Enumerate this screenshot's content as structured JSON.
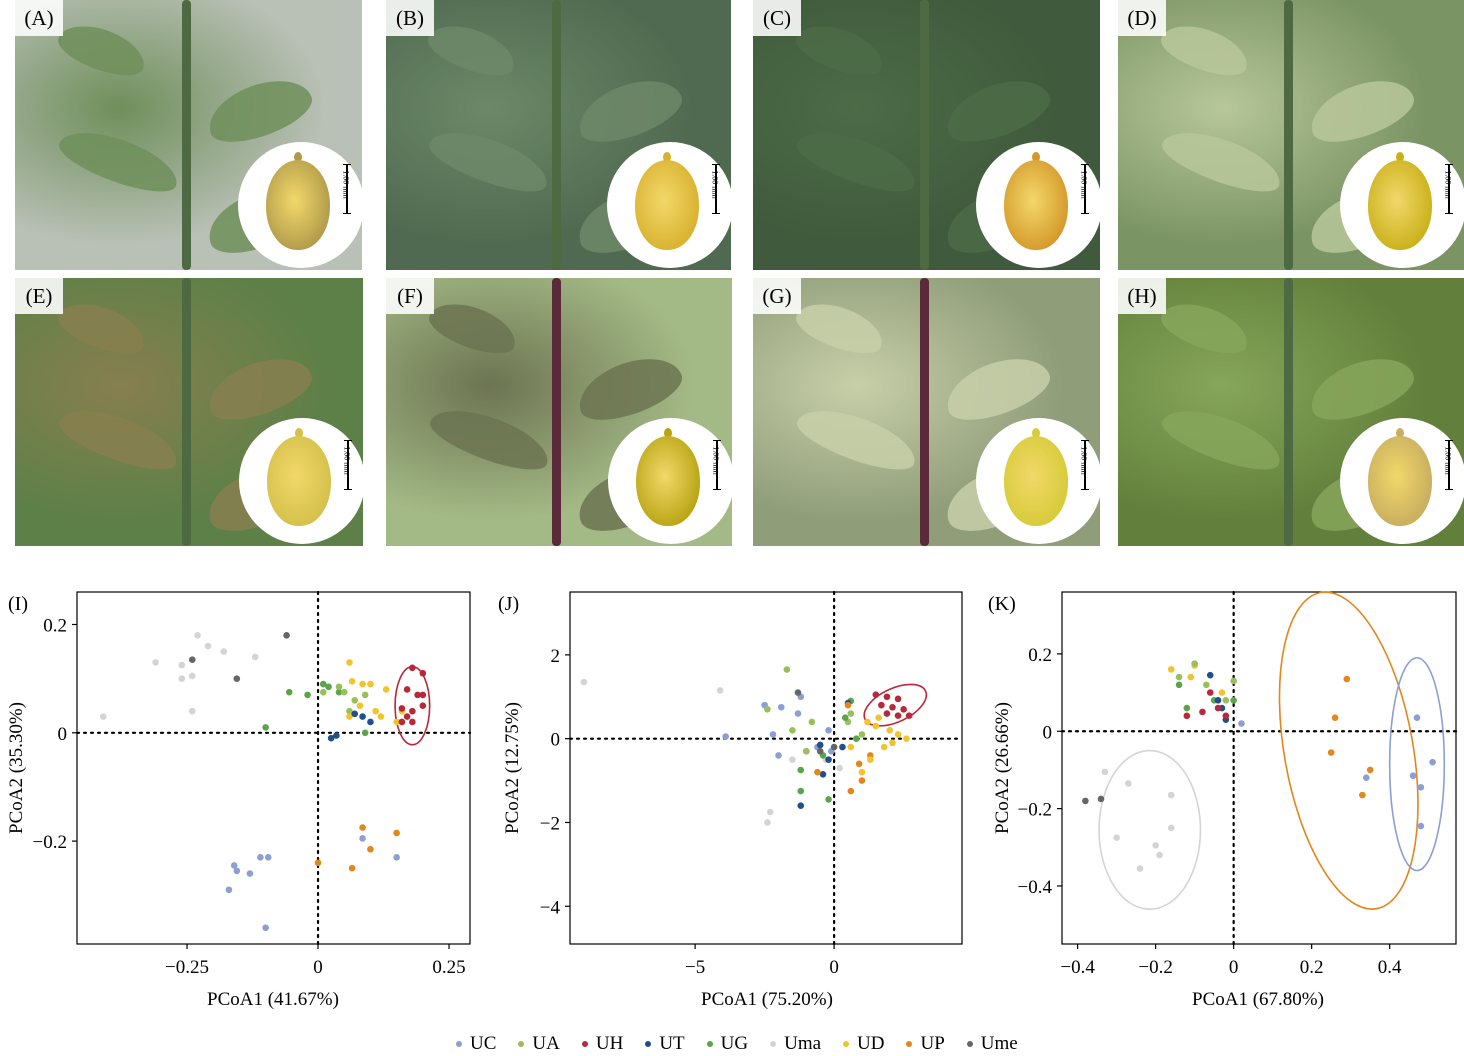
{
  "photos": [
    {
      "label": "(A)",
      "scale": "1.00 mm",
      "bg": "#b9c0b6",
      "plant": "#6f8f5b",
      "seed": "#b09a4a"
    },
    {
      "label": "(B)",
      "scale": "1.00 mm",
      "bg": "#4f6a50",
      "plant": "#6c8868",
      "seed": "#d8b12e"
    },
    {
      "label": "(C)",
      "scale": "1.00 mm",
      "bg": "#3f5a3c",
      "plant": "#4c6b47",
      "seed": "#d5982a"
    },
    {
      "label": "(D)",
      "scale": "1.00 mm",
      "bg": "#7b9464",
      "plant": "#b7c79a",
      "seed": "#c9b018"
    },
    {
      "label": "(E)",
      "scale": "1.00 mm",
      "bg": "#5d8048",
      "plant": "#877f4f",
      "seed": "#d4c04a"
    },
    {
      "label": "(F)",
      "scale": "1.00 mm",
      "bg": "#a4ba86",
      "plant": "#6c7451",
      "seed": "#b8a412"
    },
    {
      "label": "(G)",
      "scale": "1.00 mm",
      "bg": "#8f9d79",
      "plant": "#c7cfa8",
      "seed": "#d6cb38"
    },
    {
      "label": "(H)",
      "scale": "1.00 mm",
      "bg": "#62803b",
      "plant": "#86a65a",
      "seed": "#c7ad5f"
    }
  ],
  "legend": [
    {
      "name": "UC",
      "color": "#8b9fd4"
    },
    {
      "name": "UA",
      "color": "#97c05a"
    },
    {
      "name": "UH",
      "color": "#b8273a"
    },
    {
      "name": "UT",
      "color": "#1f4f8c"
    },
    {
      "name": "UG",
      "color": "#5aa54a"
    },
    {
      "name": "Uma",
      "color": "#d4d4d4"
    },
    {
      "name": "UD",
      "color": "#f3c32e"
    },
    {
      "name": "UP",
      "color": "#e3861c"
    },
    {
      "name": "Ume",
      "color": "#666666"
    }
  ],
  "chart_data": [
    {
      "type": "scatter",
      "panel": "(I)",
      "xlabel": "PCoA1 (41.67%)",
      "ylabel": "PCoA2 (35.30%)",
      "xlim": [
        -0.46,
        0.29
      ],
      "ylim": [
        -0.39,
        0.26
      ],
      "xticks": [
        -0.25,
        0,
        0.25
      ],
      "xtick_labels": [
        "−0.25",
        "0",
        "0.25"
      ],
      "yticks": [
        -0.2,
        0,
        0.2
      ],
      "ytick_labels": [
        "−0.2",
        "0",
        "0.2"
      ],
      "ellipses": [
        {
          "series": "UH",
          "cx": 0.18,
          "cy": 0.05,
          "rx": 0.033,
          "ry": 0.072,
          "angle": 0
        }
      ],
      "series": [
        {
          "name": "Uma",
          "points": [
            [
              -0.41,
              0.03
            ],
            [
              -0.31,
              0.13
            ],
            [
              -0.26,
              0.125
            ],
            [
              -0.26,
              0.1
            ],
            [
              -0.24,
              0.105
            ],
            [
              -0.24,
              0.04
            ],
            [
              -0.21,
              0.16
            ],
            [
              -0.18,
              0.15
            ],
            [
              -0.12,
              0.14
            ],
            [
              -0.23,
              0.18
            ]
          ]
        },
        {
          "name": "Ume",
          "points": [
            [
              -0.24,
              0.135
            ],
            [
              -0.155,
              0.1
            ],
            [
              -0.06,
              0.18
            ]
          ]
        },
        {
          "name": "UG",
          "points": [
            [
              -0.1,
              0.01
            ],
            [
              -0.055,
              0.075
            ],
            [
              -0.02,
              0.07
            ],
            [
              0.01,
              0.09
            ],
            [
              0.04,
              0.075
            ],
            [
              0.09,
              0.0
            ],
            [
              0.02,
              0.085
            ]
          ]
        },
        {
          "name": "UA",
          "points": [
            [
              0.01,
              0.075
            ],
            [
              0.05,
              0.075
            ],
            [
              0.07,
              0.06
            ],
            [
              0.09,
              0.07
            ],
            [
              0.06,
              0.04
            ],
            [
              0.04,
              0.085
            ]
          ]
        },
        {
          "name": "UD",
          "points": [
            [
              0.06,
              0.13
            ],
            [
              0.065,
              0.095
            ],
            [
              0.085,
              0.09
            ],
            [
              0.1,
              0.09
            ],
            [
              0.12,
              0.03
            ],
            [
              0.15,
              0.02
            ],
            [
              0.16,
              0.04
            ],
            [
              0.06,
              0.03
            ],
            [
              0.08,
              0.05
            ],
            [
              0.13,
              0.08
            ],
            [
              0.11,
              0.04
            ]
          ]
        },
        {
          "name": "UT",
          "points": [
            [
              0.025,
              -0.01
            ],
            [
              0.035,
              -0.005
            ],
            [
              0.07,
              0.035
            ],
            [
              0.085,
              0.03
            ],
            [
              0.1,
              0.02
            ]
          ]
        },
        {
          "name": "UH",
          "points": [
            [
              0.18,
              0.12
            ],
            [
              0.2,
              0.11
            ],
            [
              0.17,
              0.08
            ],
            [
              0.19,
              0.07
            ],
            [
              0.2,
              0.07
            ],
            [
              0.16,
              0.045
            ],
            [
              0.18,
              0.04
            ],
            [
              0.2,
              0.05
            ],
            [
              0.16,
              0.02
            ],
            [
              0.18,
              0.02
            ],
            [
              0.17,
              0.03
            ]
          ]
        },
        {
          "name": "UC",
          "points": [
            [
              -0.16,
              -0.245
            ],
            [
              -0.155,
              -0.255
            ],
            [
              -0.11,
              -0.23
            ],
            [
              -0.095,
              -0.23
            ],
            [
              -0.13,
              -0.26
            ],
            [
              -0.17,
              -0.29
            ],
            [
              -0.1,
              -0.36
            ],
            [
              0.085,
              -0.195
            ],
            [
              0.15,
              -0.23
            ]
          ]
        },
        {
          "name": "UP",
          "points": [
            [
              0.0,
              -0.24
            ],
            [
              0.085,
              -0.175
            ],
            [
              0.1,
              -0.215
            ],
            [
              0.15,
              -0.185
            ],
            [
              0.065,
              -0.25
            ]
          ]
        }
      ]
    },
    {
      "type": "scatter",
      "panel": "(J)",
      "xlabel": "PCoA1 (75.20%)",
      "ylabel": "PCoA2 (12.75%)",
      "xlim": [
        -9.5,
        4.6
      ],
      "ylim": [
        -4.9,
        3.5
      ],
      "xticks": [
        -5,
        0
      ],
      "xtick_labels": [
        "−5",
        "0"
      ],
      "yticks": [
        -4,
        -2,
        0,
        2
      ],
      "ytick_labels": [
        "−4",
        "−2",
        "0",
        "2"
      ],
      "ellipses": [
        {
          "series": "UH",
          "cx": 2.2,
          "cy": 0.8,
          "rx": 1.2,
          "ry": 0.4,
          "angle": 25
        }
      ],
      "series": [
        {
          "name": "Uma",
          "points": [
            [
              -9.0,
              1.35
            ],
            [
              -4.1,
              1.15
            ],
            [
              -2.3,
              -1.75
            ],
            [
              -2.4,
              -2.0
            ],
            [
              -1.5,
              -0.5
            ],
            [
              -0.3,
              -0.5
            ],
            [
              0.2,
              -0.7
            ]
          ]
        },
        {
          "name": "UC",
          "points": [
            [
              -3.9,
              0.05
            ],
            [
              -2.5,
              0.8
            ],
            [
              -1.2,
              1.0
            ],
            [
              -2.0,
              -0.4
            ],
            [
              -1.0,
              -0.3
            ],
            [
              -0.6,
              -0.2
            ],
            [
              -1.3,
              0.6
            ],
            [
              -0.2,
              0.2
            ],
            [
              -2.2,
              0.1
            ],
            [
              -1.9,
              0.75
            ],
            [
              -0.1,
              -0.3
            ]
          ]
        },
        {
          "name": "UA",
          "points": [
            [
              -1.7,
              1.65
            ],
            [
              -2.4,
              0.7
            ],
            [
              -1.5,
              0.2
            ],
            [
              -0.8,
              0.4
            ],
            [
              0.5,
              0.4
            ],
            [
              1.0,
              0.1
            ],
            [
              0.6,
              0.6
            ],
            [
              -1.0,
              -0.3
            ]
          ]
        },
        {
          "name": "UG",
          "points": [
            [
              -1.2,
              -1.25
            ],
            [
              -1.2,
              -0.75
            ],
            [
              -0.2,
              -1.45
            ],
            [
              -0.4,
              -0.4
            ],
            [
              0.4,
              0.5
            ],
            [
              0.6,
              0.9
            ],
            [
              0.8,
              0.0
            ]
          ]
        },
        {
          "name": "Ume",
          "points": [
            [
              -1.3,
              1.1
            ],
            [
              -0.5,
              -0.3
            ],
            [
              0.0,
              -0.2
            ]
          ]
        },
        {
          "name": "UT",
          "points": [
            [
              -1.2,
              -1.6
            ],
            [
              -0.4,
              -0.85
            ],
            [
              -0.5,
              -0.15
            ],
            [
              0.5,
              0.85
            ],
            [
              0.3,
              -0.2
            ],
            [
              -0.2,
              -0.5
            ]
          ]
        },
        {
          "name": "UP",
          "points": [
            [
              -0.6,
              -0.8
            ],
            [
              0.6,
              -1.25
            ],
            [
              1.0,
              -1.0
            ],
            [
              1.3,
              -0.4
            ],
            [
              0.5,
              0.8
            ],
            [
              0.9,
              -0.6
            ]
          ]
        },
        {
          "name": "UD",
          "points": [
            [
              1.0,
              -0.8
            ],
            [
              1.3,
              -0.5
            ],
            [
              1.5,
              0.3
            ],
            [
              2.1,
              -0.1
            ],
            [
              2.3,
              0.1
            ],
            [
              2.6,
              0.0
            ],
            [
              1.8,
              -0.2
            ],
            [
              1.6,
              0.5
            ],
            [
              0.6,
              -0.2
            ],
            [
              1.2,
              0.4
            ],
            [
              2.0,
              0.2
            ]
          ]
        },
        {
          "name": "UH",
          "points": [
            [
              1.5,
              1.05
            ],
            [
              1.9,
              1.0
            ],
            [
              2.3,
              0.95
            ],
            [
              1.7,
              0.8
            ],
            [
              2.1,
              0.75
            ],
            [
              2.5,
              0.7
            ],
            [
              1.9,
              0.6
            ],
            [
              2.3,
              0.55
            ],
            [
              2.7,
              0.55
            ]
          ]
        }
      ]
    },
    {
      "type": "scatter",
      "panel": "(K)",
      "xlabel": "PCoA1 (67.80%)",
      "ylabel": "PCoA2 (26.66%)",
      "xlim": [
        -0.44,
        0.57
      ],
      "ylim": [
        -0.55,
        0.36
      ],
      "xticks": [
        -0.4,
        -0.2,
        0,
        0.2,
        0.4
      ],
      "xtick_labels": [
        "−0.4",
        "−0.2",
        "0",
        "0.2",
        "0.4"
      ],
      "yticks": [
        -0.4,
        -0.2,
        0,
        0.2
      ],
      "ytick_labels": [
        "−0.4",
        "−0.2",
        "0",
        "0.2"
      ],
      "ellipses": [
        {
          "series": "Uma",
          "cx": -0.215,
          "cy": -0.255,
          "rx": 0.13,
          "ry": 0.205,
          "angle": 0
        },
        {
          "series": "UP",
          "cx": 0.295,
          "cy": -0.05,
          "rx": 0.165,
          "ry": 0.415,
          "angle": 10
        },
        {
          "series": "UC",
          "cx": 0.47,
          "cy": -0.085,
          "rx": 0.07,
          "ry": 0.275,
          "angle": 0
        }
      ],
      "series": [
        {
          "name": "Ume",
          "points": [
            [
              -0.38,
              -0.18
            ],
            [
              -0.34,
              -0.175
            ]
          ]
        },
        {
          "name": "Uma",
          "points": [
            [
              -0.33,
              -0.105
            ],
            [
              -0.3,
              -0.275
            ],
            [
              -0.27,
              -0.135
            ],
            [
              -0.24,
              -0.355
            ],
            [
              -0.2,
              -0.295
            ],
            [
              -0.19,
              -0.32
            ],
            [
              -0.16,
              -0.25
            ],
            [
              -0.16,
              -0.165
            ]
          ]
        },
        {
          "name": "UD",
          "points": [
            [
              -0.16,
              0.16
            ],
            [
              -0.1,
              0.17
            ],
            [
              -0.11,
              0.14
            ],
            [
              -0.03,
              0.1
            ]
          ]
        },
        {
          "name": "UA",
          "points": [
            [
              -0.14,
              0.14
            ],
            [
              -0.1,
              0.175
            ],
            [
              -0.07,
              0.12
            ],
            [
              -0.02,
              0.08
            ],
            [
              0.0,
              0.13
            ]
          ]
        },
        {
          "name": "UG",
          "points": [
            [
              -0.14,
              0.12
            ],
            [
              -0.12,
              0.06
            ],
            [
              -0.05,
              0.08
            ],
            [
              0.0,
              0.08
            ]
          ]
        },
        {
          "name": "UT",
          "points": [
            [
              -0.06,
              0.145
            ],
            [
              -0.03,
              0.06
            ],
            [
              -0.04,
              0.08
            ],
            [
              -0.02,
              0.03
            ]
          ]
        },
        {
          "name": "UH",
          "points": [
            [
              -0.12,
              0.04
            ],
            [
              -0.08,
              0.05
            ],
            [
              -0.06,
              0.1
            ],
            [
              -0.04,
              0.06
            ],
            [
              -0.02,
              0.04
            ]
          ]
        },
        {
          "name": "UP",
          "points": [
            [
              0.25,
              -0.055
            ],
            [
              0.26,
              0.035
            ],
            [
              0.29,
              0.135
            ],
            [
              0.33,
              -0.165
            ],
            [
              0.35,
              -0.1
            ]
          ]
        },
        {
          "name": "UC",
          "points": [
            [
              0.34,
              -0.12
            ],
            [
              0.46,
              -0.115
            ],
            [
              0.47,
              0.035
            ],
            [
              0.48,
              -0.145
            ],
            [
              0.48,
              -0.245
            ],
            [
              0.51,
              -0.08
            ],
            [
              0.02,
              0.02
            ]
          ]
        }
      ]
    }
  ]
}
